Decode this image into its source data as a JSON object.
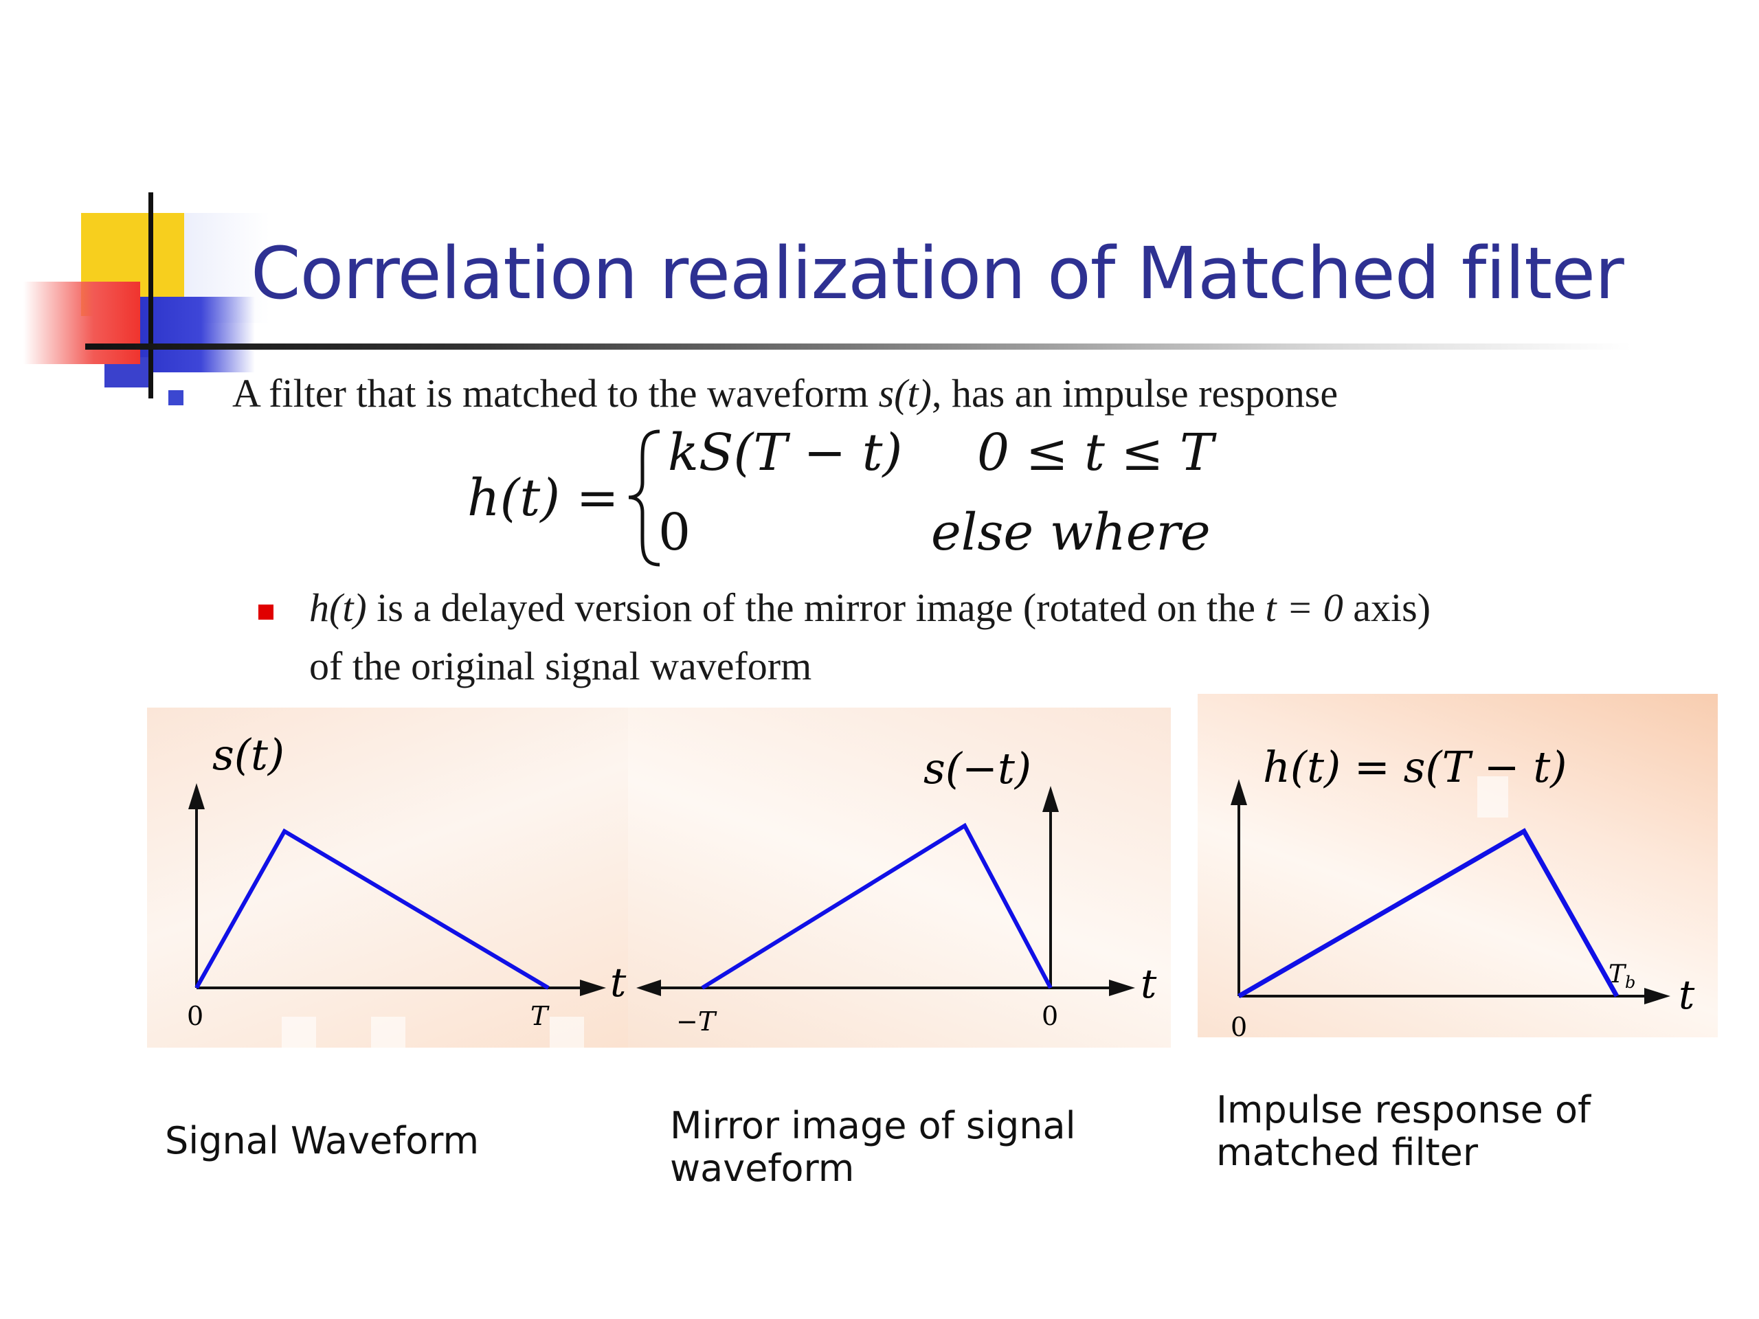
{
  "slide": {
    "title": "Correlation realization of Matched filter",
    "bullet1": {
      "before": "A filter that is matched to the waveform ",
      "signal": "s(t)",
      "after": ", has an impulse response"
    },
    "equation": {
      "lhs": "h(t) =",
      "row1_expr": "kS(T − t)",
      "row1_cond": "0 ≤ t ≤ T",
      "row2_expr": "0",
      "row2_cond": "else where"
    },
    "bullet2": {
      "ht": "h(t)",
      "line1_mid": " is a delayed version of the mirror image (rotated on the ",
      "t0": "t = 0",
      "line1_end": " axis)",
      "line2": "of the original signal waveform"
    },
    "plots": {
      "signal": {
        "ylabel": "s(t)",
        "xlabel": "t",
        "origin": "0",
        "tick_end": "T"
      },
      "mirror": {
        "ylabel": "s(−t)",
        "xlabel": "t",
        "origin": "0",
        "tick_start": "−T"
      },
      "impulse": {
        "ylabel": "h(t) = s(T − t)",
        "xlabel": "t",
        "origin": "0",
        "tick_end": "T_b"
      }
    },
    "captions": {
      "signal": "Signal Waveform",
      "mirror": "Mirror image of signal waveform",
      "impulse": "Impulse response of matched filter"
    },
    "colors": {
      "title": "#2e3192",
      "waveform": "#1010e6",
      "bullet_primary": "#3b47d0",
      "bullet_secondary": "#e00000"
    }
  }
}
